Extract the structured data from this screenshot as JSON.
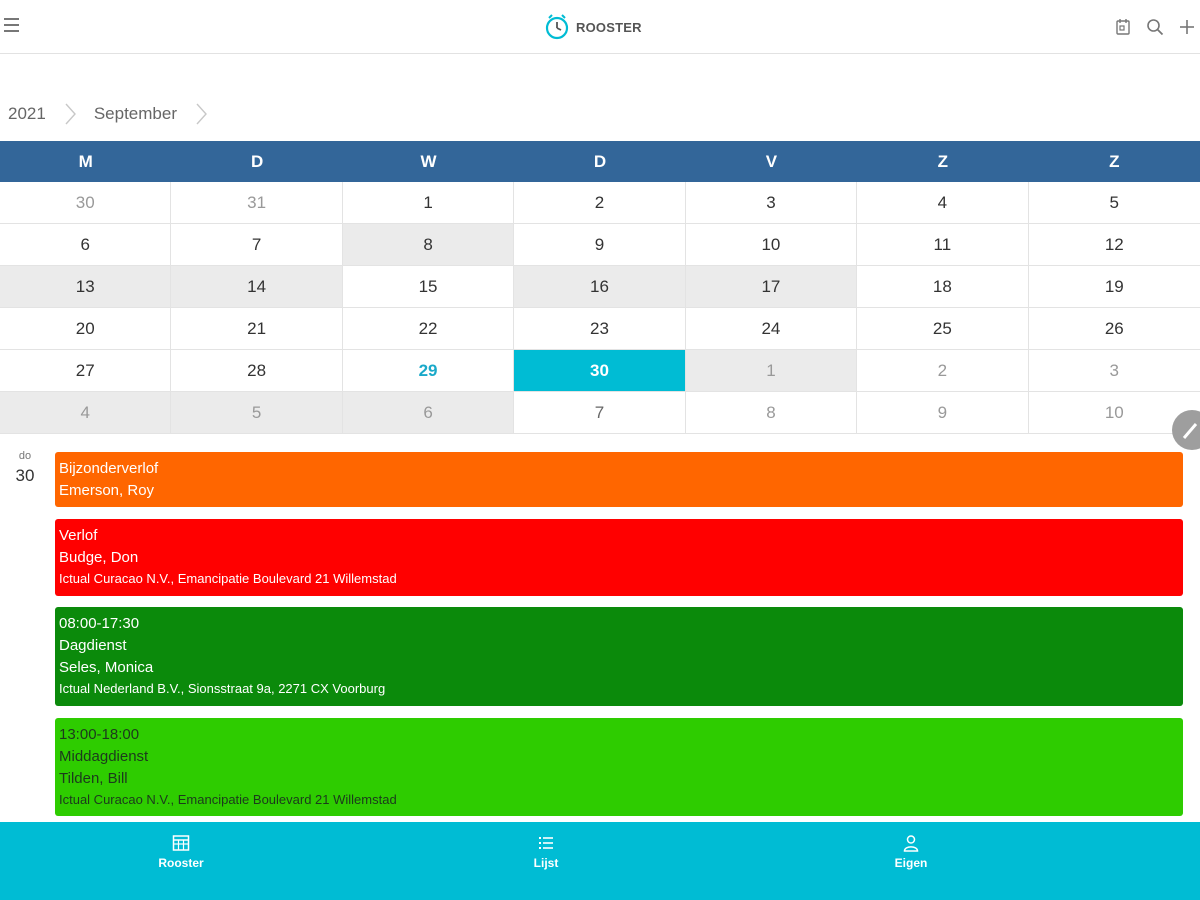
{
  "header": {
    "title": "ROOSTER"
  },
  "breadcrumb": {
    "year": "2021",
    "month": "September"
  },
  "calendar": {
    "weekdays": [
      "M",
      "D",
      "W",
      "D",
      "V",
      "Z",
      "Z"
    ],
    "weeks": [
      [
        "30",
        "31",
        "1",
        "2",
        "3",
        "4",
        "5"
      ],
      [
        "6",
        "7",
        "8",
        "9",
        "10",
        "11",
        "12"
      ],
      [
        "13",
        "14",
        "15",
        "16",
        "17",
        "18",
        "19"
      ],
      [
        "20",
        "21",
        "22",
        "23",
        "24",
        "25",
        "26"
      ],
      [
        "27",
        "28",
        "29",
        "30",
        "1",
        "2",
        "3"
      ],
      [
        "4",
        "5",
        "6",
        "7",
        "8",
        "9",
        "10"
      ]
    ],
    "selected_day": "30",
    "today": "29"
  },
  "day": {
    "abbr": "do",
    "number": "30"
  },
  "events": [
    {
      "color": "#ff6600",
      "lines": [
        "Bijzonderverlof",
        "Emerson, Roy"
      ]
    },
    {
      "color": "#ff0000",
      "lines": [
        "Verlof",
        "Budge, Don",
        "Ictual Curacao N.V., Emancipatie Boulevard 21 Willemstad"
      ]
    },
    {
      "color": "#0b8a0b",
      "lines": [
        "08:00-17:30",
        "Dagdienst",
        "Seles, Monica",
        "Ictual Nederland B.V., Sionsstraat 9a, 2271 CX Voorburg"
      ]
    },
    {
      "color": "#2ecc00",
      "lines": [
        "13:00-18:00",
        "Middagdienst",
        "Tilden, Bill",
        "Ictual Curacao N.V., Emancipatie Boulevard 21 Willemstad"
      ]
    }
  ],
  "bottom_nav": {
    "rooster": "Rooster",
    "lijst": "Lijst",
    "eigen": "Eigen"
  }
}
